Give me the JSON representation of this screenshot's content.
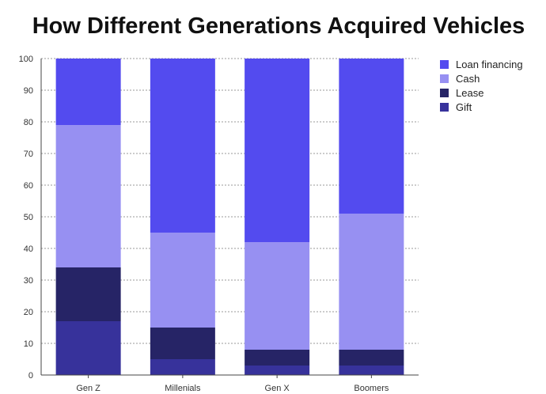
{
  "chart_data": {
    "type": "bar",
    "stacked": true,
    "title": "How Different Generations Acquired Vehicles",
    "xlabel": "",
    "ylabel": "",
    "ylim": [
      0,
      100
    ],
    "yticks": [
      0,
      10,
      20,
      30,
      40,
      50,
      60,
      70,
      80,
      90,
      100
    ],
    "grid": true,
    "legend_position": "top-right",
    "categories": [
      "Gen Z",
      "Millenials",
      "Gen X",
      "Boomers"
    ],
    "series": [
      {
        "name": "Gift",
        "color": "#37329b",
        "values": [
          17,
          5,
          3,
          3
        ]
      },
      {
        "name": "Lease",
        "color": "#262466",
        "values": [
          17,
          10,
          5,
          5
        ]
      },
      {
        "name": "Cash",
        "color": "#9790f2",
        "values": [
          45,
          30,
          34,
          43
        ]
      },
      {
        "name": "Loan financing",
        "color": "#534bef",
        "values": [
          21,
          55,
          58,
          49
        ]
      }
    ],
    "legend_order": [
      "Loan financing",
      "Cash",
      "Lease",
      "Gift"
    ]
  }
}
